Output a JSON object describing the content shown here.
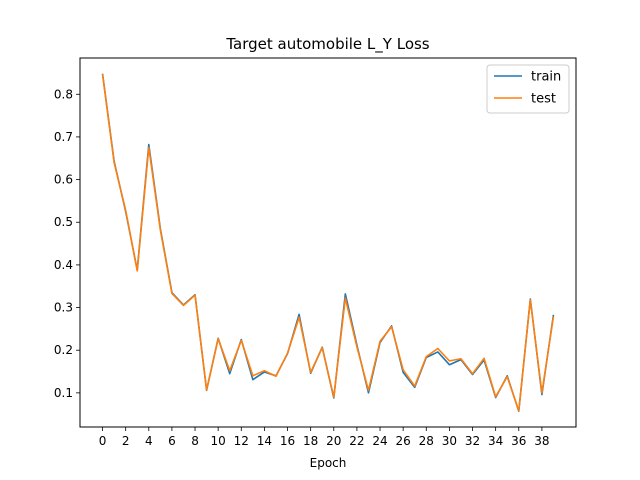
{
  "chart_data": {
    "type": "line",
    "title": "Target automobile L_Y Loss",
    "xlabel": "Epoch",
    "ylabel": "",
    "xlim": [
      -1.95,
      40.95
    ],
    "ylim": [
      0.02,
      0.885
    ],
    "xticks": [
      0,
      2,
      4,
      6,
      8,
      10,
      12,
      14,
      16,
      18,
      20,
      22,
      24,
      26,
      28,
      30,
      32,
      34,
      36,
      38
    ],
    "yticks": [
      0.1,
      0.2,
      0.3,
      0.4,
      0.5,
      0.6,
      0.7,
      0.8
    ],
    "ytick_labels": [
      "0.1",
      "0.2",
      "0.3",
      "0.4",
      "0.5",
      "0.6",
      "0.7",
      "0.8"
    ],
    "grid": false,
    "legend_position": "top-right",
    "x": [
      0,
      1,
      2,
      3,
      4,
      5,
      6,
      7,
      8,
      9,
      10,
      11,
      12,
      13,
      14,
      15,
      16,
      17,
      18,
      19,
      20,
      21,
      22,
      23,
      24,
      25,
      26,
      27,
      28,
      29,
      30,
      31,
      32,
      33,
      34,
      35,
      36,
      37,
      38,
      39
    ],
    "series": [
      {
        "name": "train",
        "color": "#1f77b4",
        "values": [
          0.848,
          0.643,
          0.525,
          0.388,
          0.682,
          0.485,
          0.335,
          0.306,
          0.33,
          0.106,
          0.228,
          0.145,
          0.225,
          0.131,
          0.149,
          0.14,
          0.192,
          0.284,
          0.146,
          0.207,
          0.088,
          0.332,
          0.212,
          0.1,
          0.218,
          0.257,
          0.148,
          0.113,
          0.183,
          0.196,
          0.166,
          0.178,
          0.143,
          0.177,
          0.089,
          0.14,
          0.057,
          0.32,
          0.096,
          0.283
        ]
      },
      {
        "name": "test",
        "color": "#ff7f0e",
        "values": [
          0.847,
          0.64,
          0.528,
          0.386,
          0.675,
          0.482,
          0.333,
          0.305,
          0.329,
          0.107,
          0.227,
          0.152,
          0.223,
          0.14,
          0.152,
          0.139,
          0.193,
          0.277,
          0.148,
          0.206,
          0.09,
          0.322,
          0.208,
          0.106,
          0.221,
          0.255,
          0.154,
          0.116,
          0.185,
          0.204,
          0.175,
          0.18,
          0.145,
          0.181,
          0.091,
          0.138,
          0.058,
          0.318,
          0.1,
          0.279
        ]
      }
    ]
  }
}
